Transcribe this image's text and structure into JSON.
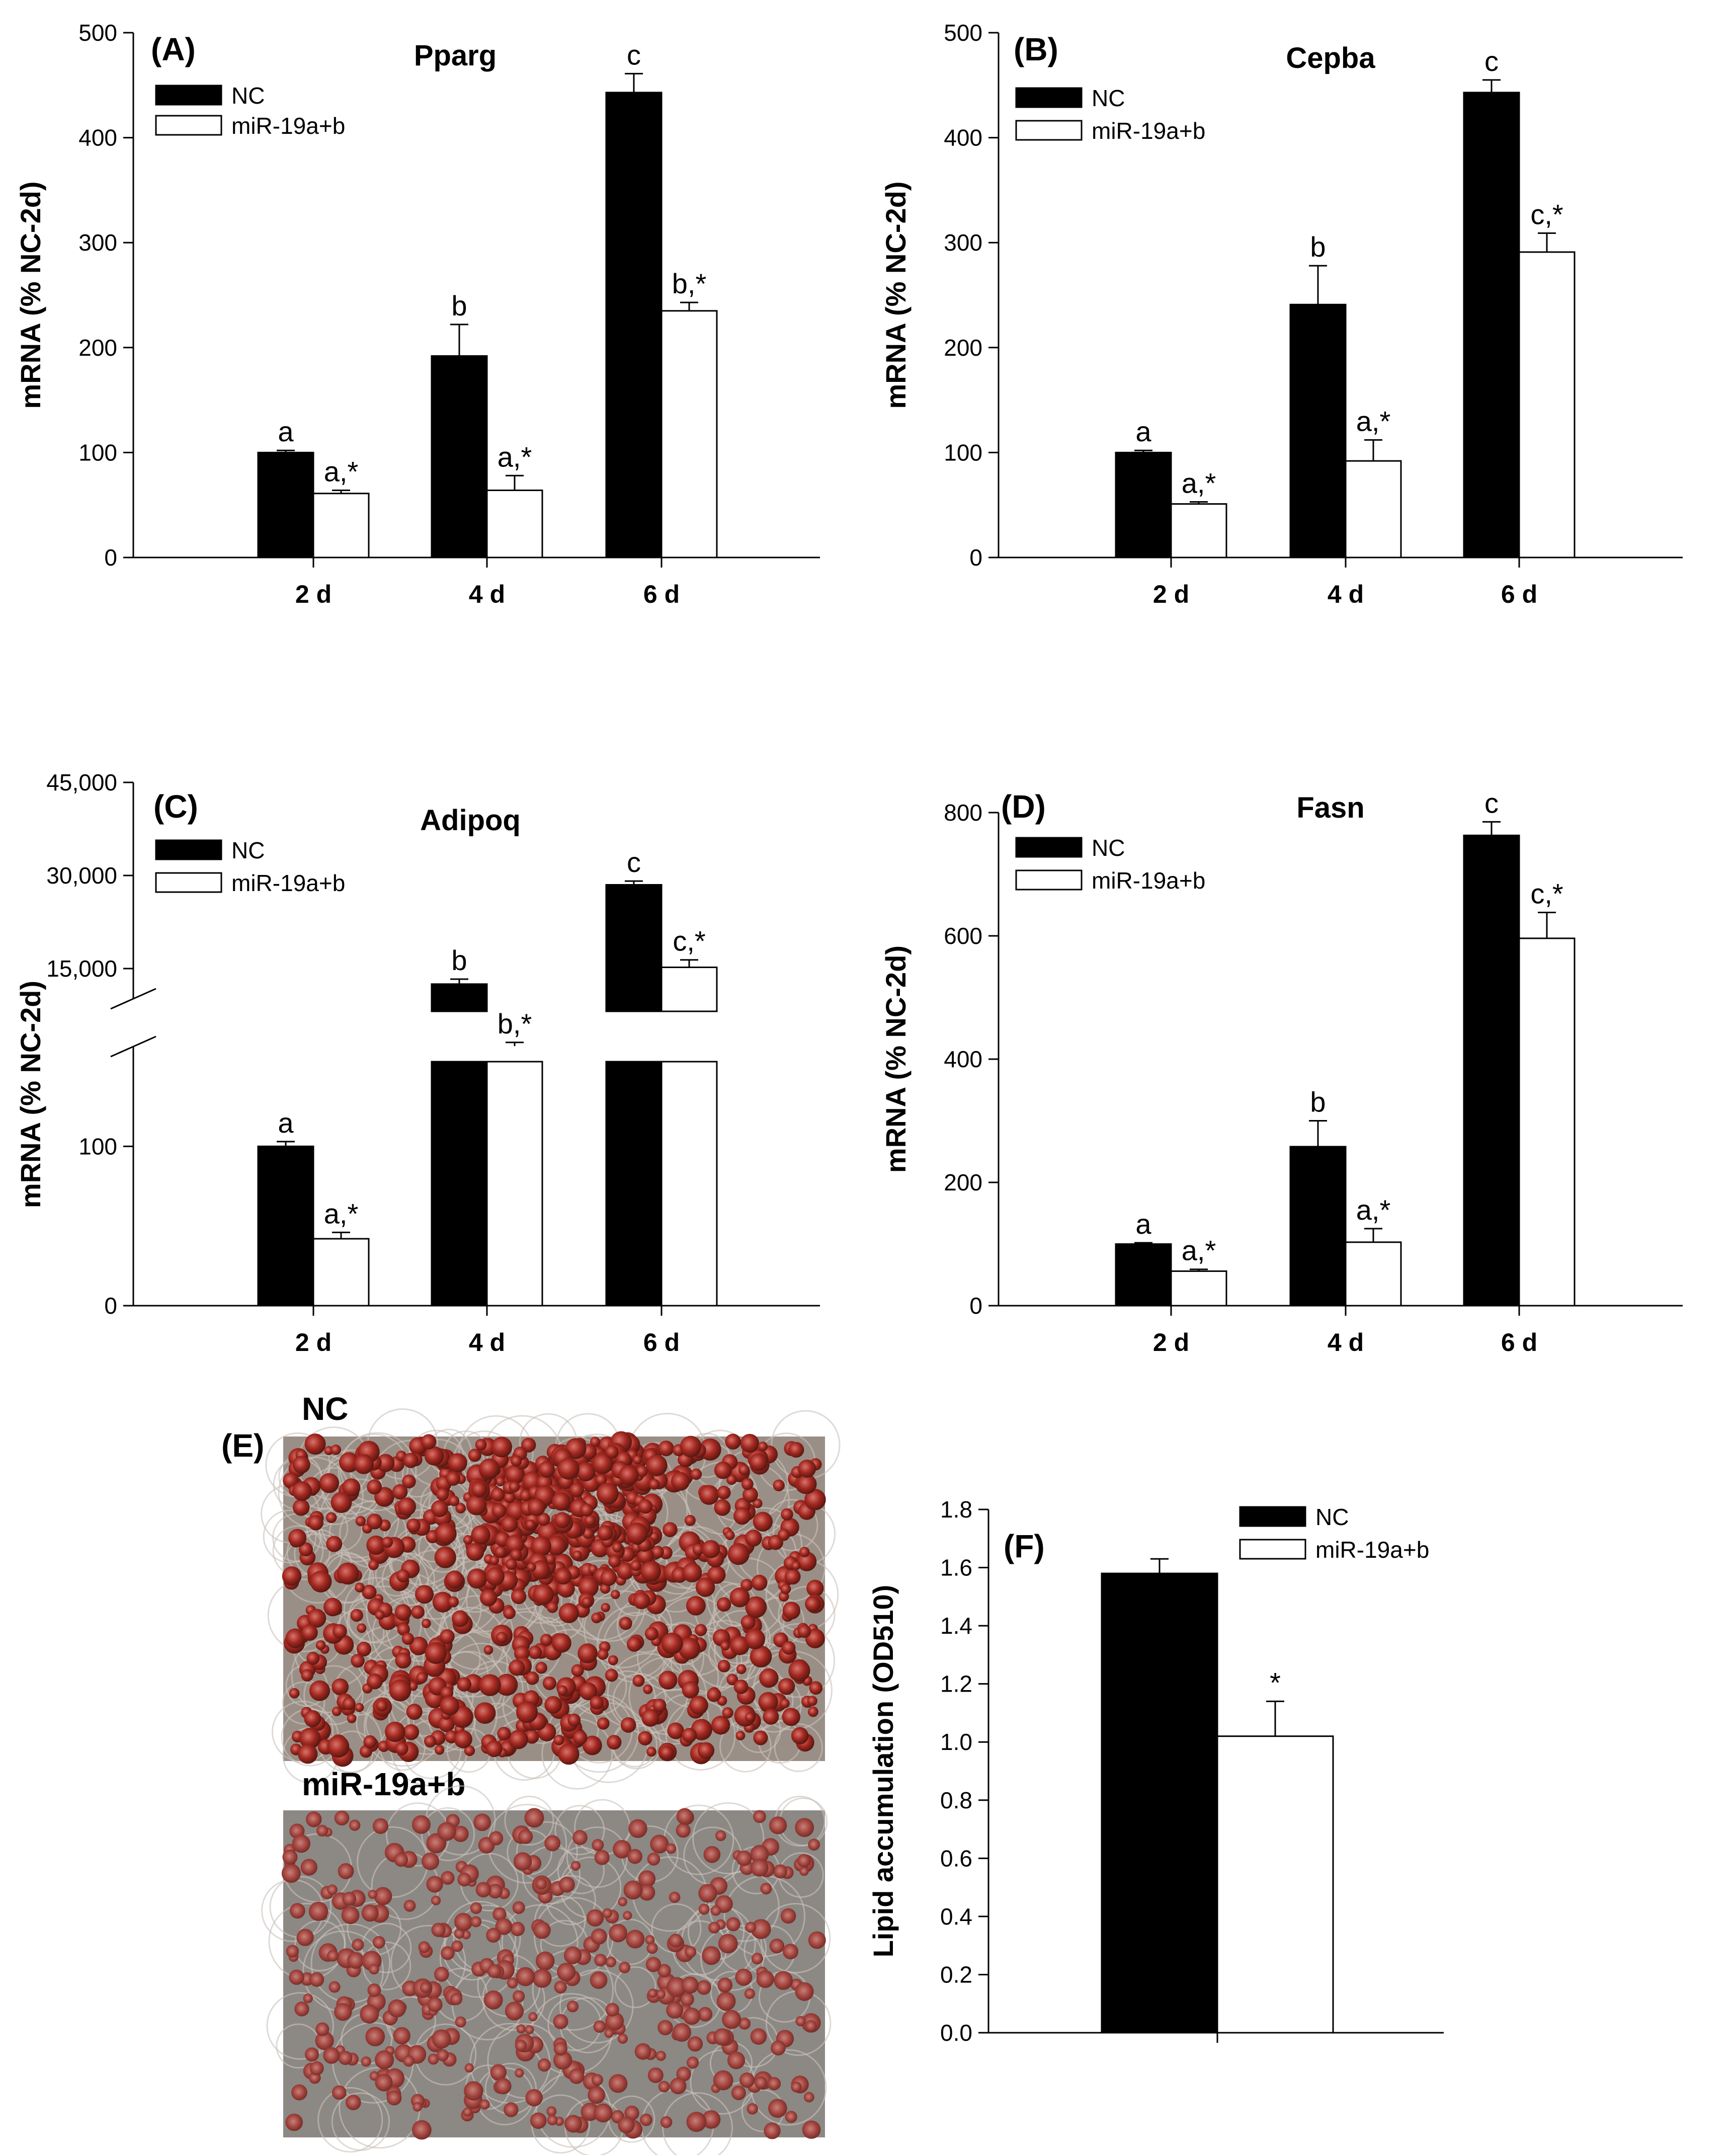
{
  "colors": {
    "NC": "#000000",
    "miR": "#ffffff"
  },
  "chart_data": [
    {
      "id": "A",
      "type": "bar",
      "panel_label": "(A)",
      "title": "Pparg",
      "ylabel": "mRNA (% NC-2d)",
      "ylim": [
        0,
        500
      ],
      "yticks": [
        0,
        100,
        200,
        300,
        400,
        500
      ],
      "ytick_labels": [
        "0",
        "100",
        "200",
        "300",
        "400",
        "500"
      ],
      "categories": [
        "2 d",
        "4 d",
        "6 d"
      ],
      "legend": [
        "NC",
        "miR-19a+b"
      ],
      "series": [
        {
          "name": "NC",
          "values": [
            100,
            192,
            443
          ],
          "errors": [
            2,
            30,
            18
          ],
          "labels": [
            "a",
            "b",
            "c"
          ]
        },
        {
          "name": "miR-19a+b",
          "values": [
            61,
            64,
            235
          ],
          "errors": [
            3,
            14,
            8
          ],
          "labels": [
            "a,*",
            "a,*",
            "b,*"
          ]
        }
      ]
    },
    {
      "id": "B",
      "type": "bar",
      "panel_label": "(B)",
      "title": "Cepba",
      "ylabel": "mRNA (% NC-2d)",
      "ylim": [
        0,
        500
      ],
      "yticks": [
        0,
        100,
        200,
        300,
        400,
        500
      ],
      "ytick_labels": [
        "0",
        "100",
        "200",
        "300",
        "400",
        "500"
      ],
      "categories": [
        "2 d",
        "4 d",
        "6 d"
      ],
      "legend": [
        "NC",
        "miR-19a+b"
      ],
      "series": [
        {
          "name": "NC",
          "values": [
            100,
            241,
            443
          ],
          "errors": [
            2,
            37,
            12
          ],
          "labels": [
            "a",
            "b",
            "c"
          ]
        },
        {
          "name": "miR-19a+b",
          "values": [
            51,
            92,
            291
          ],
          "errors": [
            2,
            20,
            18
          ],
          "labels": [
            "a,*",
            "a,*",
            "c,*"
          ]
        }
      ]
    },
    {
      "id": "C",
      "type": "bar",
      "panel_label": "(C)",
      "title": "Adipoq",
      "ylabel": "mRNA (% NC-2d)",
      "broken_axis": true,
      "lower_ylim": [
        0,
        150
      ],
      "lower_yticks": [
        0,
        100
      ],
      "lower_ytick_labels": [
        "0",
        "100"
      ],
      "upper_ylim": [
        0,
        45000
      ],
      "upper_yticks": [
        15000,
        30000,
        45000
      ],
      "upper_ytick_labels": [
        "15,000",
        "30,000",
        "45,000"
      ],
      "categories": [
        "2 d",
        "4 d",
        "6 d"
      ],
      "legend": [
        "NC",
        "miR-19a+b"
      ],
      "series": [
        {
          "name": "NC",
          "values": [
            100,
            12500,
            28500
          ],
          "errors": [
            3,
            800,
            600
          ],
          "labels": [
            "a",
            "b",
            "c"
          ]
        },
        {
          "name": "miR-19a+b",
          "values": [
            42,
            2500,
            15200
          ],
          "errors": [
            4,
            600,
            1200
          ],
          "labels": [
            "a,*",
            "b,*",
            "c,*"
          ]
        }
      ]
    },
    {
      "id": "D",
      "type": "bar",
      "panel_label": "(D)",
      "title": "Fasn",
      "ylabel": "mRNA (% NC-2d)",
      "ylim": [
        0,
        800
      ],
      "yticks": [
        0,
        200,
        400,
        600,
        800
      ],
      "ytick_labels": [
        "0",
        "200",
        "400",
        "600",
        "800"
      ],
      "categories": [
        "2 d",
        "4 d",
        "6 d"
      ],
      "legend": [
        "NC",
        "miR-19a+b"
      ],
      "series": [
        {
          "name": "NC",
          "values": [
            100,
            258,
            763
          ],
          "errors": [
            2,
            42,
            22
          ],
          "labels": [
            "a",
            "b",
            "c"
          ]
        },
        {
          "name": "miR-19a+b",
          "values": [
            56,
            103,
            596
          ],
          "errors": [
            3,
            22,
            42
          ],
          "labels": [
            "a,*",
            "a,*",
            "c,*"
          ]
        }
      ]
    },
    {
      "id": "F",
      "type": "bar",
      "panel_label": "(F)",
      "title": "",
      "ylabel": "Lipid accumulation (OD510)",
      "ylim": [
        0,
        1.8
      ],
      "yticks": [
        0,
        0.2,
        0.4,
        0.6,
        0.8,
        1.0,
        1.2,
        1.4,
        1.6,
        1.8
      ],
      "ytick_labels": [
        "0.0",
        "0.2",
        "0.4",
        "0.6",
        "0.8",
        "1.0",
        "1.2",
        "1.4",
        "1.6",
        "1.8"
      ],
      "categories": [
        ""
      ],
      "legend": [
        "NC",
        "miR-19a+b"
      ],
      "series": [
        {
          "name": "NC",
          "values": [
            1.58
          ],
          "errors": [
            0.05
          ],
          "labels": [
            ""
          ]
        },
        {
          "name": "miR-19a+b",
          "values": [
            1.02
          ],
          "errors": [
            0.12
          ],
          "labels": [
            "*"
          ]
        }
      ]
    }
  ],
  "micrographs": {
    "panel_label": "(E)",
    "top_label": "NC",
    "bottom_label": "miR-19a+b"
  }
}
